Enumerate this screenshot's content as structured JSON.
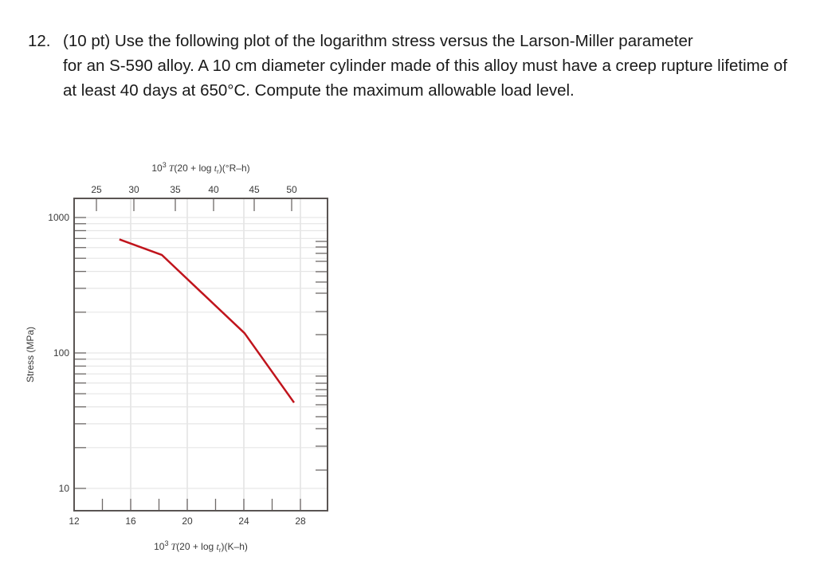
{
  "question": {
    "number": "12.",
    "line1": "(10 pt) Use the following plot of the logarithm stress versus the Larson-Miller parameter",
    "rest": "for an S-590 alloy. A 10 cm diameter cylinder made of this alloy must have a creep rupture lifetime of at least 40 days at 650°C. Compute the maximum allowable load level."
  },
  "chart_data": {
    "type": "line",
    "title": "",
    "xlabel": "10³ T(20 + log t_r)(K–h)",
    "xlabel_top": "10³ T(20 + log t_r)(°R–h)",
    "ylabel": "Stress (MPa)",
    "xlim": [
      12,
      30
    ],
    "ylim": [
      10,
      1150
    ],
    "yscale": "log",
    "grid": true,
    "legend": null,
    "x_ticks": [
      12,
      16,
      20,
      24,
      28
    ],
    "x_ticks_top": [
      25,
      30,
      35,
      40,
      45,
      50
    ],
    "y_ticks": [
      10,
      100,
      1000
    ],
    "series": [
      {
        "name": "S-590 alloy",
        "color": "#c0141c",
        "x": [
          15.2,
          18.2,
          24.05,
          27.55
        ],
        "y": [
          690,
          530,
          140,
          43
        ]
      }
    ]
  }
}
